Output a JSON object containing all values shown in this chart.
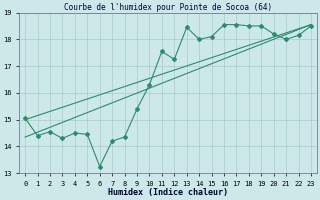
{
  "title": "Courbe de l'humidex pour Pointe de Socoa (64)",
  "xlabel": "Humidex (Indice chaleur)",
  "x_values": [
    0,
    1,
    2,
    3,
    4,
    5,
    6,
    7,
    8,
    9,
    10,
    11,
    12,
    13,
    14,
    15,
    16,
    17,
    18,
    19,
    20,
    21,
    22,
    23
  ],
  "line_data": [
    15.05,
    14.4,
    14.55,
    14.3,
    14.5,
    14.45,
    13.25,
    14.2,
    14.35,
    15.4,
    16.3,
    17.55,
    17.25,
    18.45,
    18.0,
    18.1,
    18.55,
    18.55,
    18.5,
    18.5,
    18.2,
    18.0,
    18.15,
    18.5
  ],
  "trend1_start": 15.0,
  "trend1_end": 18.55,
  "trend2_start": 14.35,
  "trend2_end": 18.55,
  "line_color": "#2e8b6e",
  "bg_color": "#cce8e8",
  "grid_color": "#aacccc",
  "ylim": [
    13,
    19
  ],
  "yticks": [
    13,
    14,
    15,
    16,
    17,
    18,
    19
  ],
  "xlim": [
    -0.5,
    23.5
  ],
  "title_fontsize": 5.5,
  "xlabel_fontsize": 6.0,
  "tick_fontsize": 5.0
}
